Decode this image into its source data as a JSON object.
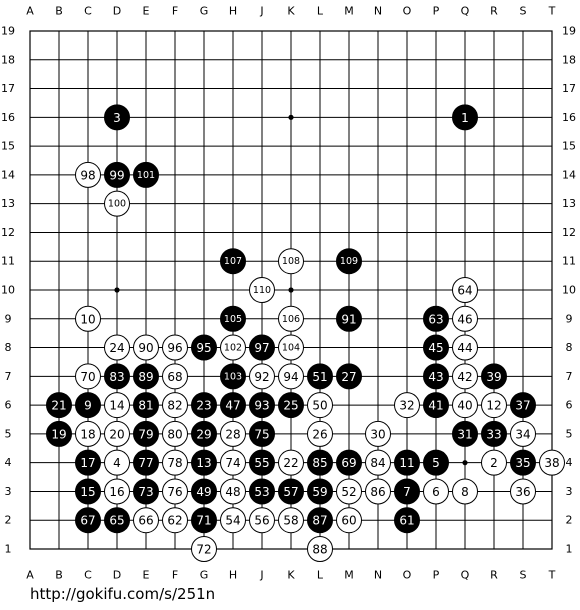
{
  "columns": [
    "A",
    "B",
    "C",
    "D",
    "E",
    "F",
    "G",
    "H",
    "J",
    "K",
    "L",
    "M",
    "N",
    "O",
    "P",
    "Q",
    "R",
    "S",
    "T"
  ],
  "rows": [
    19,
    18,
    17,
    16,
    15,
    14,
    13,
    12,
    11,
    10,
    9,
    8,
    7,
    6,
    5,
    4,
    3,
    2,
    1
  ],
  "stones": [
    {
      "move": 3,
      "color": "black",
      "col": "D",
      "row": 16
    },
    {
      "move": 1,
      "color": "black",
      "col": "Q",
      "row": 16
    },
    {
      "move": 98,
      "color": "white",
      "col": "C",
      "row": 14
    },
    {
      "move": 99,
      "color": "black",
      "col": "D",
      "row": 14
    },
    {
      "move": 101,
      "color": "black",
      "col": "E",
      "row": 14
    },
    {
      "move": 100,
      "color": "white",
      "col": "D",
      "row": 13
    },
    {
      "move": 107,
      "color": "black",
      "col": "H",
      "row": 11
    },
    {
      "move": 108,
      "color": "white",
      "col": "K",
      "row": 11
    },
    {
      "move": 109,
      "color": "black",
      "col": "M",
      "row": 11
    },
    {
      "move": 110,
      "color": "white",
      "col": "J",
      "row": 10
    },
    {
      "move": 64,
      "color": "white",
      "col": "Q",
      "row": 10
    },
    {
      "move": 10,
      "color": "white",
      "col": "C",
      "row": 9
    },
    {
      "move": 105,
      "color": "black",
      "col": "H",
      "row": 9
    },
    {
      "move": 106,
      "color": "white",
      "col": "K",
      "row": 9
    },
    {
      "move": 91,
      "color": "black",
      "col": "M",
      "row": 9
    },
    {
      "move": 63,
      "color": "black",
      "col": "P",
      "row": 9
    },
    {
      "move": 46,
      "color": "white",
      "col": "Q",
      "row": 9
    },
    {
      "move": 24,
      "color": "white",
      "col": "D",
      "row": 8
    },
    {
      "move": 90,
      "color": "white",
      "col": "E",
      "row": 8
    },
    {
      "move": 96,
      "color": "white",
      "col": "F",
      "row": 8
    },
    {
      "move": 95,
      "color": "black",
      "col": "G",
      "row": 8
    },
    {
      "move": 102,
      "color": "white",
      "col": "H",
      "row": 8
    },
    {
      "move": 97,
      "color": "black",
      "col": "J",
      "row": 8
    },
    {
      "move": 104,
      "color": "white",
      "col": "K",
      "row": 8
    },
    {
      "move": 45,
      "color": "black",
      "col": "P",
      "row": 8
    },
    {
      "move": 44,
      "color": "white",
      "col": "Q",
      "row": 8
    },
    {
      "move": 70,
      "color": "white",
      "col": "C",
      "row": 7
    },
    {
      "move": 83,
      "color": "black",
      "col": "D",
      "row": 7
    },
    {
      "move": 89,
      "color": "black",
      "col": "E",
      "row": 7
    },
    {
      "move": 68,
      "color": "white",
      "col": "F",
      "row": 7
    },
    {
      "move": 103,
      "color": "black",
      "col": "H",
      "row": 7
    },
    {
      "move": 92,
      "color": "white",
      "col": "J",
      "row": 7
    },
    {
      "move": 94,
      "color": "white",
      "col": "K",
      "row": 7
    },
    {
      "move": 51,
      "color": "black",
      "col": "L",
      "row": 7
    },
    {
      "move": 27,
      "color": "black",
      "col": "M",
      "row": 7
    },
    {
      "move": 43,
      "color": "black",
      "col": "P",
      "row": 7
    },
    {
      "move": 42,
      "color": "white",
      "col": "Q",
      "row": 7
    },
    {
      "move": 39,
      "color": "black",
      "col": "R",
      "row": 7
    },
    {
      "move": 21,
      "color": "black",
      "col": "B",
      "row": 6
    },
    {
      "move": 9,
      "color": "black",
      "col": "C",
      "row": 6
    },
    {
      "move": 14,
      "color": "white",
      "col": "D",
      "row": 6
    },
    {
      "move": 81,
      "color": "black",
      "col": "E",
      "row": 6
    },
    {
      "move": 82,
      "color": "white",
      "col": "F",
      "row": 6
    },
    {
      "move": 23,
      "color": "black",
      "col": "G",
      "row": 6
    },
    {
      "move": 47,
      "color": "black",
      "col": "H",
      "row": 6
    },
    {
      "move": 93,
      "color": "black",
      "col": "J",
      "row": 6
    },
    {
      "move": 25,
      "color": "black",
      "col": "K",
      "row": 6
    },
    {
      "move": 50,
      "color": "white",
      "col": "L",
      "row": 6
    },
    {
      "move": 32,
      "color": "white",
      "col": "O",
      "row": 6
    },
    {
      "move": 41,
      "color": "black",
      "col": "P",
      "row": 6
    },
    {
      "move": 40,
      "color": "white",
      "col": "Q",
      "row": 6
    },
    {
      "move": 12,
      "color": "white",
      "col": "R",
      "row": 6
    },
    {
      "move": 37,
      "color": "black",
      "col": "S",
      "row": 6
    },
    {
      "move": 19,
      "color": "black",
      "col": "B",
      "row": 5
    },
    {
      "move": 18,
      "color": "white",
      "col": "C",
      "row": 5
    },
    {
      "move": 20,
      "color": "white",
      "col": "D",
      "row": 5
    },
    {
      "move": 79,
      "color": "black",
      "col": "E",
      "row": 5
    },
    {
      "move": 80,
      "color": "white",
      "col": "F",
      "row": 5
    },
    {
      "move": 29,
      "color": "black",
      "col": "G",
      "row": 5
    },
    {
      "move": 28,
      "color": "white",
      "col": "H",
      "row": 5
    },
    {
      "move": 75,
      "color": "black",
      "col": "J",
      "row": 5
    },
    {
      "move": 26,
      "color": "white",
      "col": "L",
      "row": 5
    },
    {
      "move": 30,
      "color": "white",
      "col": "N",
      "row": 5
    },
    {
      "move": 31,
      "color": "black",
      "col": "Q",
      "row": 5
    },
    {
      "move": 33,
      "color": "black",
      "col": "R",
      "row": 5
    },
    {
      "move": 34,
      "color": "white",
      "col": "S",
      "row": 5
    },
    {
      "move": 17,
      "color": "black",
      "col": "C",
      "row": 4
    },
    {
      "move": 4,
      "color": "white",
      "col": "D",
      "row": 4
    },
    {
      "move": 77,
      "color": "black",
      "col": "E",
      "row": 4
    },
    {
      "move": 78,
      "color": "white",
      "col": "F",
      "row": 4
    },
    {
      "move": 13,
      "color": "black",
      "col": "G",
      "row": 4
    },
    {
      "move": 74,
      "color": "white",
      "col": "H",
      "row": 4
    },
    {
      "move": 55,
      "color": "black",
      "col": "J",
      "row": 4
    },
    {
      "move": 22,
      "color": "white",
      "col": "K",
      "row": 4
    },
    {
      "move": 85,
      "color": "black",
      "col": "L",
      "row": 4
    },
    {
      "move": 69,
      "color": "black",
      "col": "M",
      "row": 4
    },
    {
      "move": 84,
      "color": "white",
      "col": "N",
      "row": 4
    },
    {
      "move": 11,
      "color": "black",
      "col": "O",
      "row": 4
    },
    {
      "move": 5,
      "color": "black",
      "col": "P",
      "row": 4
    },
    {
      "move": 2,
      "color": "white",
      "col": "R",
      "row": 4
    },
    {
      "move": 35,
      "color": "black",
      "col": "S",
      "row": 4
    },
    {
      "move": 38,
      "color": "white",
      "col": "T",
      "row": 4
    },
    {
      "move": 15,
      "color": "black",
      "col": "C",
      "row": 3
    },
    {
      "move": 16,
      "color": "white",
      "col": "D",
      "row": 3
    },
    {
      "move": 73,
      "color": "black",
      "col": "E",
      "row": 3
    },
    {
      "move": 76,
      "color": "white",
      "col": "F",
      "row": 3
    },
    {
      "move": 49,
      "color": "black",
      "col": "G",
      "row": 3
    },
    {
      "move": 48,
      "color": "white",
      "col": "H",
      "row": 3
    },
    {
      "move": 53,
      "color": "black",
      "col": "J",
      "row": 3
    },
    {
      "move": 57,
      "color": "black",
      "col": "K",
      "row": 3
    },
    {
      "move": 59,
      "color": "black",
      "col": "L",
      "row": 3
    },
    {
      "move": 52,
      "color": "white",
      "col": "M",
      "row": 3
    },
    {
      "move": 86,
      "color": "white",
      "col": "N",
      "row": 3
    },
    {
      "move": 7,
      "color": "black",
      "col": "O",
      "row": 3
    },
    {
      "move": 6,
      "color": "white",
      "col": "P",
      "row": 3
    },
    {
      "move": 8,
      "color": "white",
      "col": "Q",
      "row": 3
    },
    {
      "move": 36,
      "color": "white",
      "col": "S",
      "row": 3
    },
    {
      "move": 67,
      "color": "black",
      "col": "C",
      "row": 2
    },
    {
      "move": 65,
      "color": "black",
      "col": "D",
      "row": 2
    },
    {
      "move": 66,
      "color": "white",
      "col": "E",
      "row": 2
    },
    {
      "move": 62,
      "color": "white",
      "col": "F",
      "row": 2
    },
    {
      "move": 71,
      "color": "black",
      "col": "G",
      "row": 2
    },
    {
      "move": 54,
      "color": "white",
      "col": "H",
      "row": 2
    },
    {
      "move": 56,
      "color": "white",
      "col": "J",
      "row": 2
    },
    {
      "move": 58,
      "color": "white",
      "col": "K",
      "row": 2
    },
    {
      "move": 87,
      "color": "black",
      "col": "L",
      "row": 2
    },
    {
      "move": 60,
      "color": "white",
      "col": "M",
      "row": 2
    },
    {
      "move": 61,
      "color": "black",
      "col": "O",
      "row": 2
    },
    {
      "move": 72,
      "color": "white",
      "col": "G",
      "row": 1
    },
    {
      "move": 88,
      "color": "white",
      "col": "L",
      "row": 1
    }
  ],
  "url": "http://gokifu.com/s/251n"
}
